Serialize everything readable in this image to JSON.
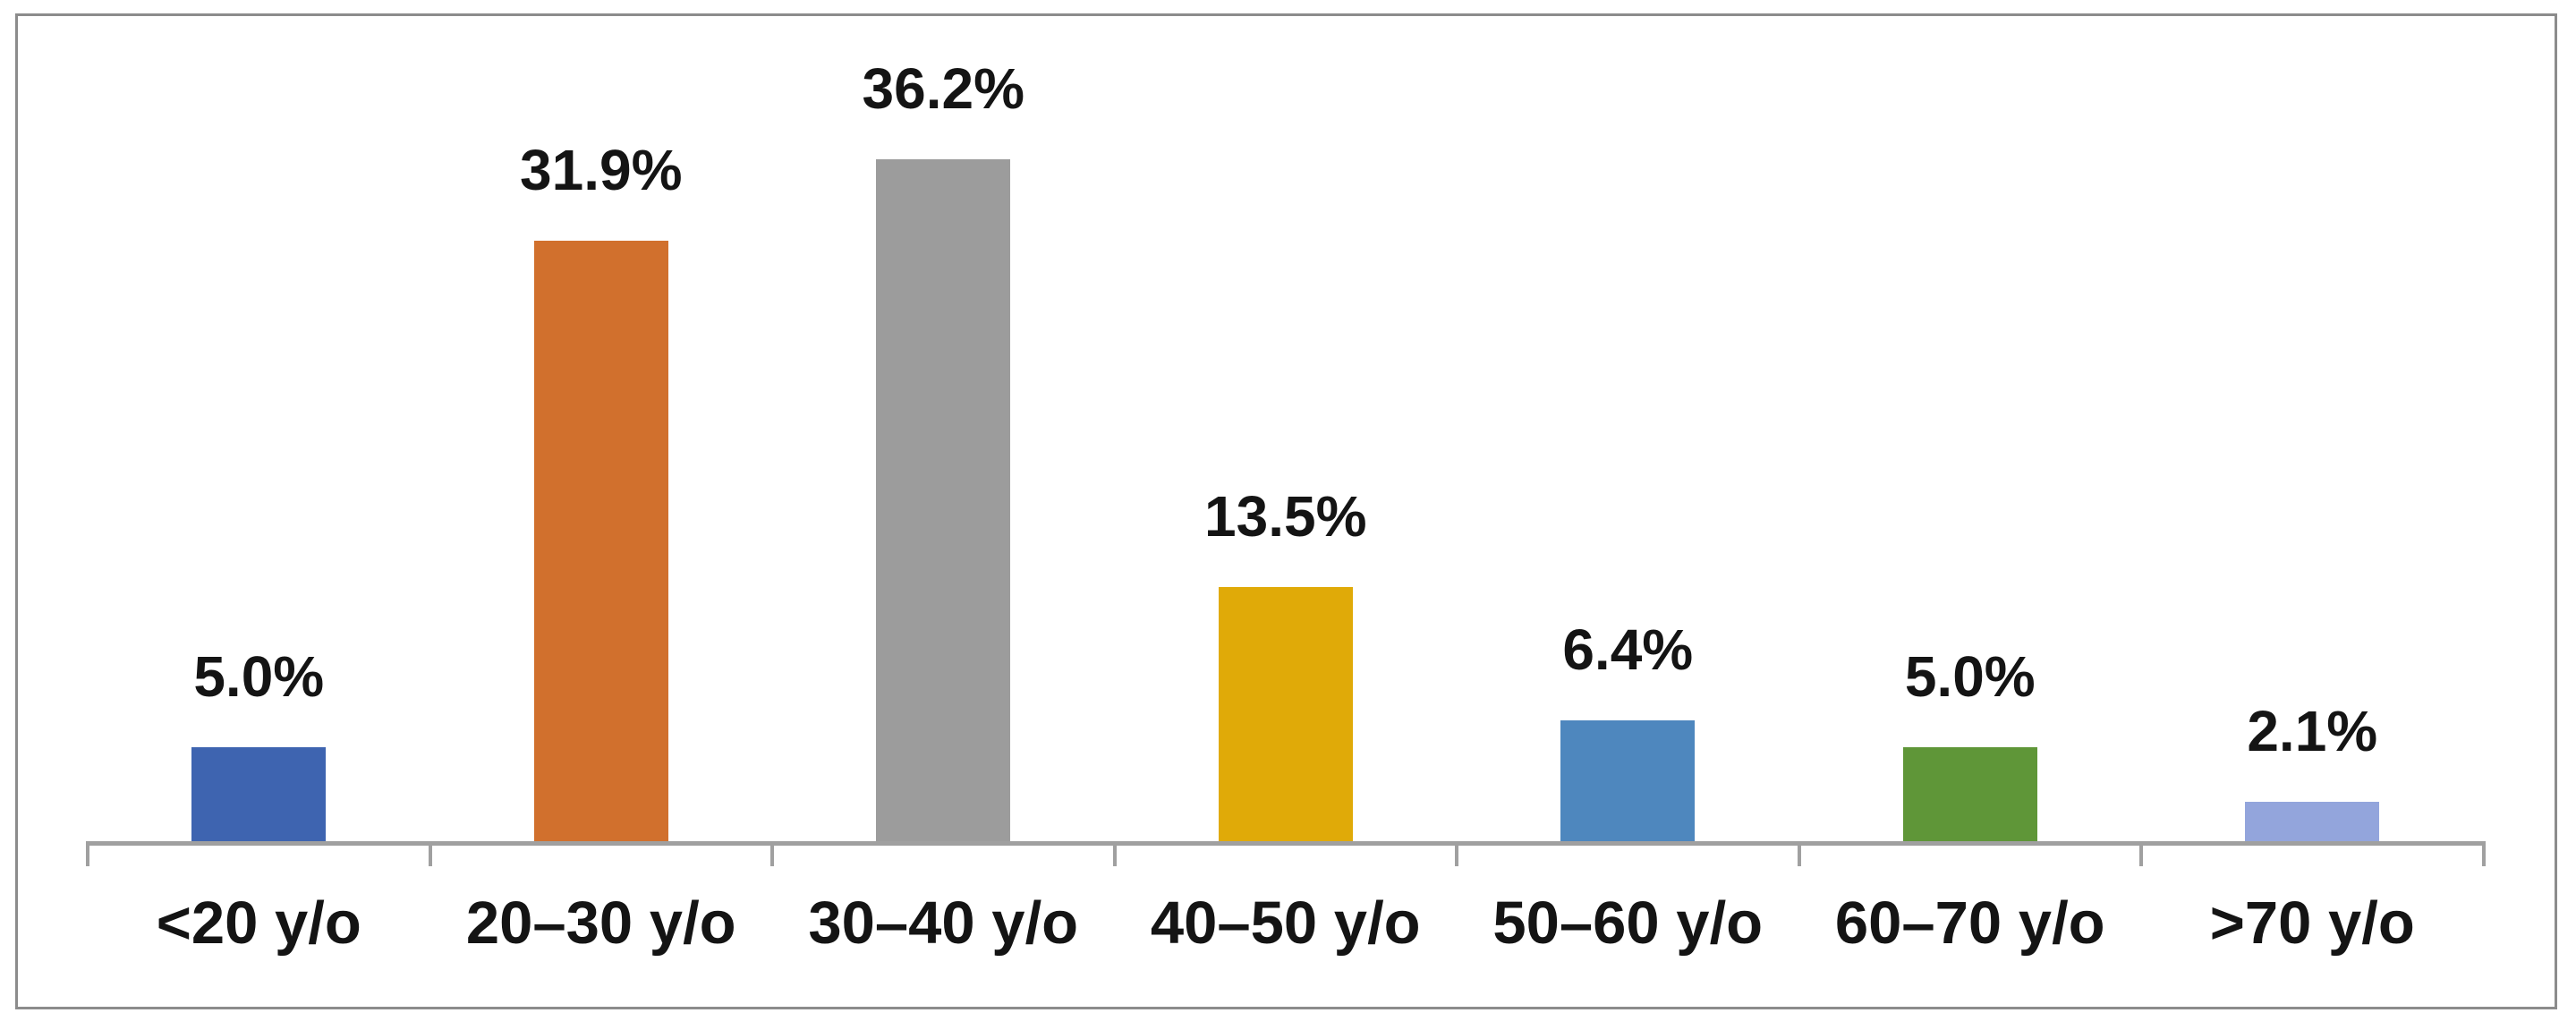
{
  "chart_data": {
    "type": "bar",
    "categories": [
      "<20 y/o",
      "20–30 y/o",
      "30–40 y/o",
      "40–50 y/o",
      "50–60 y/o",
      "60–70 y/o",
      ">70 y/o"
    ],
    "values": [
      5.0,
      31.9,
      36.2,
      13.5,
      6.4,
      5.0,
      2.1
    ],
    "data_labels": [
      "5.0%",
      "31.9%",
      "36.2%",
      "13.5%",
      "6.4%",
      "5.0%",
      "2.1%"
    ],
    "bar_colors": [
      "#3E64B0",
      "#D1702D",
      "#9C9C9C",
      "#E0AA08",
      "#4E87BE",
      "#5F9638",
      "#93A5DC"
    ],
    "title": "",
    "xlabel": "",
    "ylabel": "",
    "ylim": [
      0,
      40
    ],
    "grid": false,
    "legend": "none",
    "axis_color": "#A0A0A0",
    "frame_color": "#8C8C8C",
    "text_color": "#141414"
  }
}
